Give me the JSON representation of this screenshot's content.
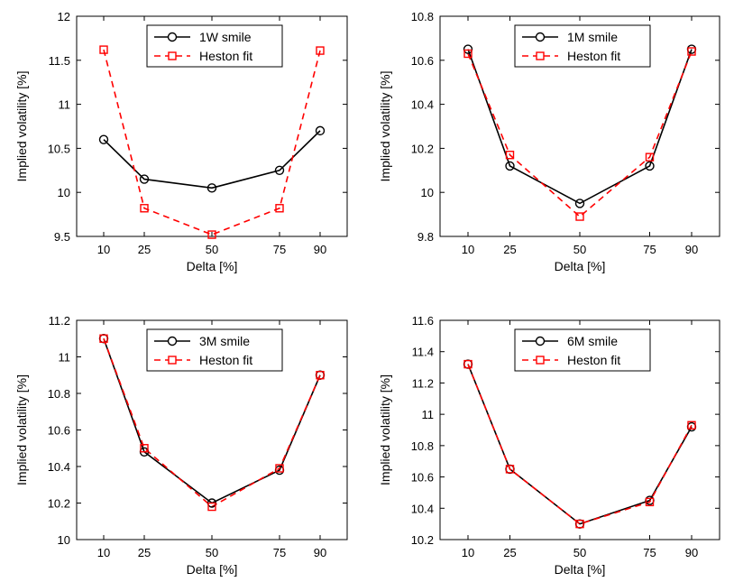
{
  "chart_data": [
    {
      "type": "line",
      "x": [
        10,
        25,
        50,
        75,
        90
      ],
      "xlabel": "Delta [%]",
      "ylabel": "Implied volatility [%]",
      "xlim": [
        0,
        100
      ],
      "ylim": [
        9.5,
        12
      ],
      "yticks": [
        "9.5",
        "10",
        "10.5",
        "11",
        "11.5",
        "12"
      ],
      "xticks": [
        "10",
        "25",
        "50",
        "75",
        "90"
      ],
      "legend_position": "top-center",
      "series": [
        {
          "name": "1W smile",
          "style": "solid",
          "marker": "circle",
          "color": "#000000",
          "values": [
            10.6,
            10.15,
            10.05,
            10.25,
            10.7
          ]
        },
        {
          "name": "Heston fit",
          "style": "dashed",
          "marker": "square",
          "color": "#ff0000",
          "values": [
            11.62,
            9.82,
            9.52,
            9.82,
            11.61
          ]
        }
      ]
    },
    {
      "type": "line",
      "x": [
        10,
        25,
        50,
        75,
        90
      ],
      "xlabel": "Delta [%]",
      "ylabel": "Implied volatility [%]",
      "xlim": [
        0,
        100
      ],
      "ylim": [
        9.8,
        10.8
      ],
      "yticks": [
        "9.8",
        "10",
        "10.2",
        "10.4",
        "10.6",
        "10.8"
      ],
      "xticks": [
        "10",
        "25",
        "50",
        "75",
        "90"
      ],
      "legend_position": "top-center",
      "series": [
        {
          "name": "1M smile",
          "style": "solid",
          "marker": "circle",
          "color": "#000000",
          "values": [
            10.65,
            10.12,
            9.95,
            10.12,
            10.65
          ]
        },
        {
          "name": "Heston fit",
          "style": "dashed",
          "marker": "square",
          "color": "#ff0000",
          "values": [
            10.63,
            10.17,
            9.89,
            10.16,
            10.64
          ]
        }
      ]
    },
    {
      "type": "line",
      "x": [
        10,
        25,
        50,
        75,
        90
      ],
      "xlabel": "Delta [%]",
      "ylabel": "Implied volatility [%]",
      "xlim": [
        0,
        100
      ],
      "ylim": [
        10,
        11.2
      ],
      "yticks": [
        "10",
        "10.2",
        "10.4",
        "10.6",
        "10.8",
        "11",
        "11.2"
      ],
      "xticks": [
        "10",
        "25",
        "50",
        "75",
        "90"
      ],
      "legend_position": "top-center",
      "series": [
        {
          "name": "3M smile",
          "style": "solid",
          "marker": "circle",
          "color": "#000000",
          "values": [
            11.1,
            10.48,
            10.2,
            10.38,
            10.9
          ]
        },
        {
          "name": "Heston fit",
          "style": "dashed",
          "marker": "square",
          "color": "#ff0000",
          "values": [
            11.1,
            10.5,
            10.18,
            10.39,
            10.9
          ]
        }
      ]
    },
    {
      "type": "line",
      "x": [
        10,
        25,
        50,
        75,
        90
      ],
      "xlabel": "Delta [%]",
      "ylabel": "Implied volatility [%]",
      "xlim": [
        0,
        100
      ],
      "ylim": [
        10.2,
        11.6
      ],
      "yticks": [
        "10.2",
        "10.4",
        "10.6",
        "10.8",
        "11",
        "11.2",
        "11.4",
        "11.6"
      ],
      "xticks": [
        "10",
        "25",
        "50",
        "75",
        "90"
      ],
      "legend_position": "top-center",
      "series": [
        {
          "name": "6M smile",
          "style": "solid",
          "marker": "circle",
          "color": "#000000",
          "values": [
            11.32,
            10.65,
            10.3,
            10.45,
            10.92
          ]
        },
        {
          "name": "Heston fit",
          "style": "dashed",
          "marker": "square",
          "color": "#ff0000",
          "values": [
            11.32,
            10.65,
            10.3,
            10.44,
            10.93
          ]
        }
      ]
    }
  ]
}
